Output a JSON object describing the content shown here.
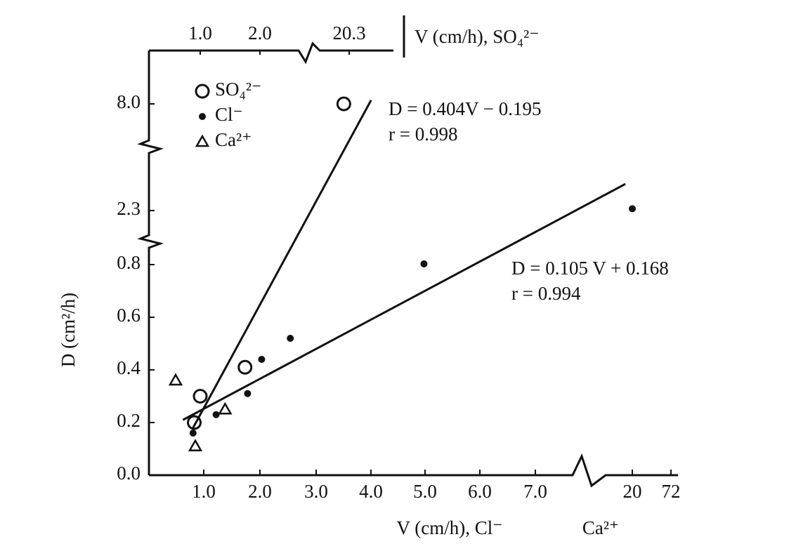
{
  "chart_data": {
    "type": "scatter",
    "x_label": "V (cm/h), Cl⁻",
    "x_label_2": "Ca²⁺",
    "x2_label": "V (cm/h), SO₄²⁻",
    "y_label": "D (cm²/h)",
    "xticks": [
      {
        "value": 1.0,
        "label": "1.0"
      },
      {
        "value": 2.0,
        "label": "2.0"
      },
      {
        "value": 3.0,
        "label": "3.0"
      },
      {
        "value": 4.0,
        "label": "4.0"
      },
      {
        "value": 5.0,
        "label": "5.0"
      },
      {
        "value": 6.0,
        "label": "6.0"
      },
      {
        "value": 7.0,
        "label": "7.0"
      },
      20,
      72
    ],
    "x2ticks": [
      {
        "value": 1.0,
        "label": "1.0"
      },
      {
        "value": 2.0,
        "label": "2.0"
      },
      {
        "value": 20.3,
        "label": "20.3"
      }
    ],
    "yticks": [
      {
        "value": 0.0,
        "label": "0.0"
      },
      {
        "value": 0.2,
        "label": "0.2"
      },
      {
        "value": 0.4,
        "label": "0.4"
      },
      {
        "value": 0.6,
        "label": "0.6"
      },
      {
        "value": 0.8,
        "label": "0.8"
      },
      {
        "value": 2.3,
        "label": "2.3"
      },
      {
        "value": 8.0,
        "label": "8.0"
      }
    ],
    "series": [
      {
        "name": "SO₄²⁻",
        "marker": "circle",
        "color": "#111111",
        "xaxis": "x2",
        "x": [
          0.9,
          1.0,
          1.75,
          19.2
        ],
        "values": [
          0.2,
          0.3,
          0.41,
          8.0
        ]
      },
      {
        "name": "Cl⁻",
        "marker": "dot",
        "color": "#111111",
        "x": [
          0.81,
          1.22,
          1.78,
          2.03,
          2.54,
          4.98,
          20
        ],
        "values": [
          0.16,
          0.23,
          0.31,
          0.44,
          0.52,
          0.82,
          2.4
        ]
      },
      {
        "name": "Ca²⁺",
        "marker": "triangle",
        "color": "#111111",
        "x": [
          0.5,
          0.85,
          1.38
        ],
        "values": [
          0.36,
          0.11,
          0.25
        ]
      }
    ],
    "fits": [
      {
        "equation": "D = 0.404V − 0.195",
        "r_label": "r = 0.998",
        "xaxis": "x2",
        "x": [
          0.88,
          24.8
        ],
        "y": [
          0.18,
          8.2
        ]
      },
      {
        "equation": "D = 0.105 V + 0.168",
        "r_label": "r = 0.994",
        "x": [
          0.63,
          19.07
        ],
        "y": [
          0.21,
          3.72
        ]
      }
    ]
  }
}
